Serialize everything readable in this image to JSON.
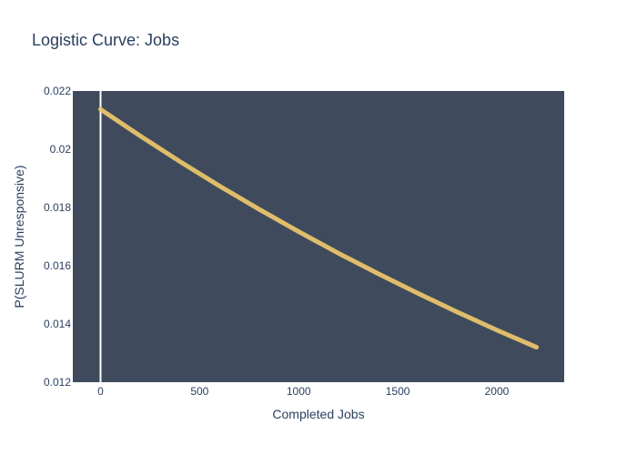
{
  "chart_data": {
    "type": "line",
    "title": "Logistic Curve: Jobs",
    "xlabel": "Completed Jobs",
    "ylabel": "P(SLURM Unresponsive)",
    "xlim": [
      -140,
      2340
    ],
    "ylim": [
      0.012,
      0.022
    ],
    "x_ticks": [
      0,
      500,
      1000,
      1500,
      2000
    ],
    "x_tick_labels": [
      "0",
      "500",
      "1000",
      "1500",
      "2000"
    ],
    "y_ticks": [
      0.012,
      0.014,
      0.016,
      0.018,
      0.02,
      0.022
    ],
    "y_tick_labels": [
      "0.012",
      "0.014",
      "0.016",
      "0.018",
      "0.02",
      "0.022"
    ],
    "grid": false,
    "zero_line_x": true,
    "series": [
      {
        "x": [
          0,
          200,
          400,
          600,
          800,
          1000,
          1200,
          1400,
          1600,
          1800,
          2000,
          2200
        ],
        "values": [
          0.02137,
          0.02046,
          0.01958,
          0.01874,
          0.01794,
          0.01717,
          0.01643,
          0.01573,
          0.01506,
          0.01441,
          0.01379,
          0.0132
        ],
        "color": "#e8c36a"
      }
    ],
    "plot_bg_color": "#3f4b5c",
    "zero_line_color": "#ffffff",
    "text_color": "#2a3f5f"
  }
}
